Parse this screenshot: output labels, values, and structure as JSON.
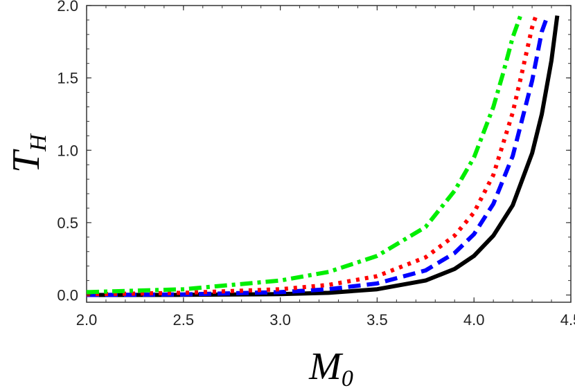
{
  "chart_data": {
    "type": "line",
    "title": "",
    "xlabel": "M",
    "xlabel_sub": "0",
    "ylabel": "T",
    "ylabel_sub": "H",
    "xlim": [
      2.0,
      4.5
    ],
    "ylim": [
      -0.05,
      2.0
    ],
    "xticks": [
      "2.0",
      "2.5",
      "3.0",
      "3.5",
      "4.0",
      "4.5"
    ],
    "yticks": [
      "0.0",
      "0.5",
      "1.0",
      "1.5",
      "2.0"
    ],
    "grid": false,
    "series": [
      {
        "name": "solid",
        "color": "#000000",
        "style": "solid",
        "x": [
          2.0,
          2.5,
          3.0,
          3.25,
          3.5,
          3.75,
          3.9,
          4.0,
          4.1,
          4.2,
          4.3,
          4.35,
          4.4,
          4.43
        ],
        "y": [
          0.0,
          0.001,
          0.006,
          0.015,
          0.04,
          0.1,
          0.18,
          0.27,
          0.41,
          0.62,
          0.98,
          1.25,
          1.62,
          1.93
        ]
      },
      {
        "name": "dashed",
        "color": "#0000ff",
        "style": "dashed",
        "x": [
          2.0,
          2.5,
          3.0,
          3.25,
          3.5,
          3.75,
          3.9,
          4.0,
          4.1,
          4.2,
          4.3,
          4.35,
          4.38
        ],
        "y": [
          0.0,
          0.004,
          0.02,
          0.04,
          0.08,
          0.17,
          0.29,
          0.42,
          0.63,
          0.96,
          1.48,
          1.82,
          1.93
        ]
      },
      {
        "name": "dotted",
        "color": "#ff0000",
        "style": "dotted",
        "x": [
          2.0,
          2.5,
          3.0,
          3.25,
          3.5,
          3.75,
          3.9,
          4.0,
          4.1,
          4.2,
          4.25,
          4.3,
          4.32
        ],
        "y": [
          0.005,
          0.015,
          0.04,
          0.07,
          0.13,
          0.26,
          0.41,
          0.57,
          0.83,
          1.26,
          1.55,
          1.85,
          1.93
        ]
      },
      {
        "name": "dash-dot",
        "color": "#00ee00",
        "style": "dashdot",
        "x": [
          2.0,
          2.5,
          3.0,
          3.25,
          3.5,
          3.75,
          3.9,
          4.0,
          4.1,
          4.15,
          4.2,
          4.24
        ],
        "y": [
          0.02,
          0.04,
          0.1,
          0.16,
          0.27,
          0.47,
          0.72,
          0.95,
          1.3,
          1.53,
          1.78,
          1.93
        ]
      }
    ]
  }
}
